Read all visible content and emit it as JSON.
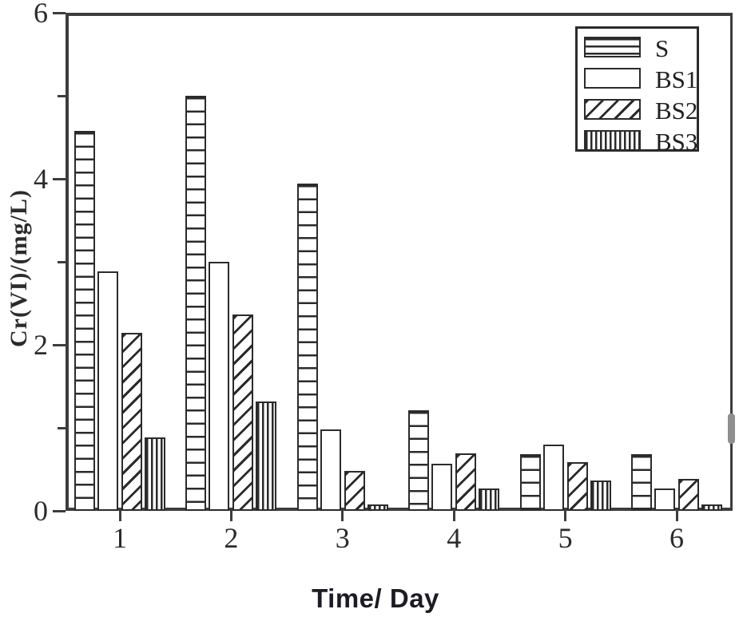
{
  "chart_data": {
    "type": "bar",
    "title": "",
    "xlabel": "Time/ Day",
    "ylabel": "Cr(VI)/(mg/L)",
    "categories": [
      "1",
      "2",
      "3",
      "4",
      "5",
      "6"
    ],
    "series": [
      {
        "name": "S",
        "pattern": "hlines",
        "values": [
          4.58,
          5.0,
          3.94,
          1.21,
          0.68,
          0.68
        ]
      },
      {
        "name": "BS1",
        "pattern": "plain",
        "values": [
          2.88,
          3.0,
          0.98,
          0.57,
          0.8,
          0.27
        ]
      },
      {
        "name": "BS2",
        "pattern": "diag",
        "values": [
          2.14,
          2.37,
          0.48,
          0.69,
          0.59,
          0.38
        ]
      },
      {
        "name": "BS3",
        "pattern": "vlines",
        "values": [
          0.88,
          1.32,
          0.08,
          0.27,
          0.37,
          0.08
        ]
      }
    ],
    "ylim": [
      0,
      6
    ],
    "y_major_ticks": [
      0,
      2,
      4,
      6
    ],
    "y_minor_ticks": [
      1,
      3,
      5
    ],
    "grid": false,
    "legend_position": "top-right",
    "colors": {
      "bar_fill": "#ffffff",
      "bar_edge": "#2b2b2b",
      "axis": "#3d3d3d",
      "text": "#2b2b2b",
      "xlabel_text": "#1c1c24",
      "background": "#ffffff",
      "artifact_gray": "#8f8f8f"
    }
  }
}
